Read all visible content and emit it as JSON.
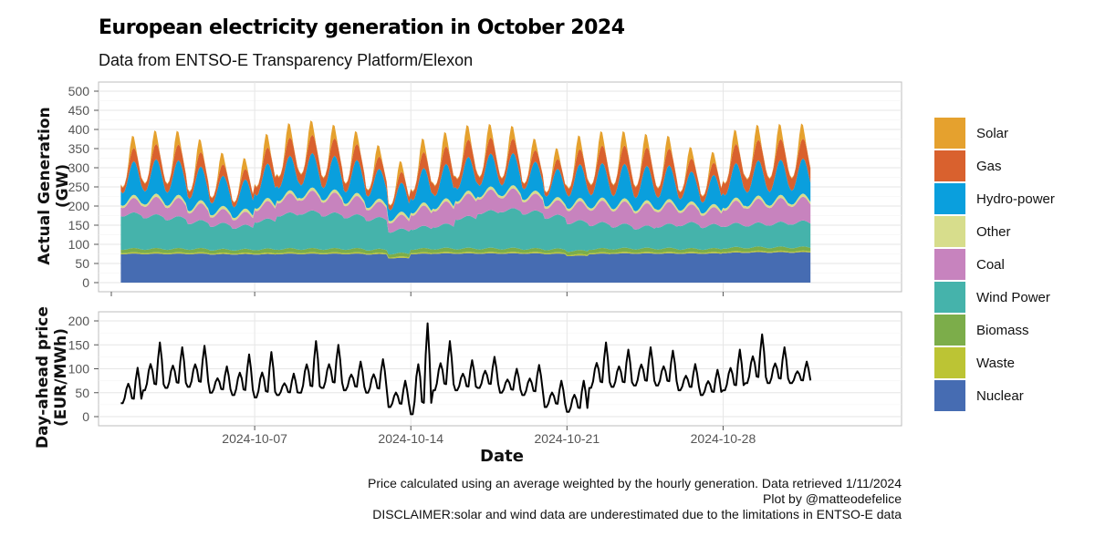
{
  "chart_data": {
    "title": "European electricity generation in October 2024",
    "subtitle": "Data from ENTSO-E Transparency Platform/Elexon",
    "xlabel": "Date",
    "caption": [
      "Price calculated using an average weighted by the hourly generation. Data retrieved 1/11/2024",
      "Plot by @matteodefelice",
      "DISCLAIMER:solar and wind data are underestimated due to the limitations in ENTSO-E data"
    ],
    "x_range": [
      "2024-09-30",
      "2024-11-05"
    ],
    "x_ticks": [
      "2024-10-07",
      "2024-10-14",
      "2024-10-21",
      "2024-10-28"
    ],
    "panels": [
      {
        "type": "area",
        "ylabel_lines": [
          "Actual Generation",
          "(GW)"
        ],
        "ylim": [
          0,
          500
        ],
        "y_ticks": [
          0,
          50,
          100,
          150,
          200,
          250,
          300,
          350,
          400,
          450,
          500
        ],
        "grid": true,
        "legend_position": "right",
        "daily_profile_days": [
          "2024-10-01",
          "2024-10-02",
          "2024-10-03",
          "2024-10-04",
          "2024-10-05",
          "2024-10-06",
          "2024-10-07",
          "2024-10-08",
          "2024-10-09",
          "2024-10-10",
          "2024-10-11",
          "2024-10-12",
          "2024-10-13",
          "2024-10-14",
          "2024-10-15",
          "2024-10-16",
          "2024-10-17",
          "2024-10-18",
          "2024-10-19",
          "2024-10-20",
          "2024-10-21",
          "2024-10-22",
          "2024-10-23",
          "2024-10-24",
          "2024-10-25",
          "2024-10-26",
          "2024-10-27",
          "2024-10-28",
          "2024-10-29",
          "2024-10-30",
          "2024-10-31"
        ],
        "series": [
          {
            "name": "Nuclear",
            "color": "#466CB2",
            "daily_mean": [
              75,
              75,
              75,
              75,
              74,
              74,
              74,
              75,
              75,
              75,
              75,
              74,
              64,
              75,
              76,
              76,
              76,
              76,
              76,
              75,
              70,
              75,
              76,
              76,
              76,
              76,
              76,
              78,
              79,
              79,
              79
            ],
            "daily_swing": [
              1,
              1,
              1,
              1,
              1,
              1,
              1,
              1,
              1,
              1,
              1,
              1,
              1,
              1,
              1,
              1,
              1,
              1,
              1,
              1,
              1,
              1,
              1,
              1,
              1,
              1,
              1,
              1,
              1,
              1,
              1
            ]
          },
          {
            "name": "Waste",
            "color": "#BCC434",
            "daily_mean": [
              3,
              3,
              3,
              3,
              3,
              3,
              3,
              3,
              3,
              3,
              3,
              3,
              3,
              3,
              3,
              3,
              3,
              3,
              3,
              3,
              3,
              3,
              3,
              3,
              3,
              3,
              3,
              3,
              3,
              3,
              3
            ],
            "daily_swing": [
              0.5,
              0.5,
              0.5,
              0.5,
              0.5,
              0.5,
              0.5,
              0.5,
              0.5,
              0.5,
              0.5,
              0.5,
              0.5,
              0.5,
              0.5,
              0.5,
              0.5,
              0.5,
              0.5,
              0.5,
              0.5,
              0.5,
              0.5,
              0.5,
              0.5,
              0.5,
              0.5,
              0.5,
              0.5,
              0.5,
              0.5
            ]
          },
          {
            "name": "Biomass",
            "color": "#7CAD4A",
            "daily_mean": [
              10,
              10,
              10,
              10,
              9,
              9,
              10,
              10,
              10,
              10,
              10,
              9,
              9,
              10,
              10,
              10,
              10,
              10,
              9,
              9,
              10,
              10,
              10,
              10,
              10,
              9,
              9,
              10,
              10,
              10,
              10
            ],
            "daily_swing": [
              1,
              1,
              1,
              1,
              1,
              1,
              1,
              1,
              1,
              1,
              1,
              1,
              1,
              1,
              1,
              1,
              1,
              1,
              1,
              1,
              1,
              1,
              1,
              1,
              1,
              1,
              1,
              1,
              1,
              1,
              1
            ]
          },
          {
            "name": "Wind Power",
            "color": "#45B3AB",
            "daily_mean": [
              90,
              85,
              80,
              70,
              65,
              60,
              75,
              90,
              95,
              90,
              85,
              80,
              60,
              55,
              60,
              80,
              95,
              100,
              95,
              85,
              75,
              65,
              60,
              55,
              60,
              65,
              60,
              60,
              60,
              62,
              65
            ],
            "daily_swing": [
              3,
              3,
              3,
              3,
              3,
              3,
              3,
              3,
              3,
              3,
              3,
              3,
              3,
              3,
              3,
              3,
              3,
              3,
              3,
              3,
              3,
              3,
              3,
              3,
              3,
              3,
              3,
              3,
              3,
              3,
              3
            ]
          },
          {
            "name": "Coal",
            "color": "#C783BE",
            "daily_mean": [
              30,
              38,
              40,
              36,
              30,
              28,
              38,
              42,
              44,
              44,
              40,
              34,
              30,
              45,
              50,
              50,
              46,
              44,
              38,
              32,
              42,
              48,
              50,
              50,
              48,
              40,
              38,
              50,
              54,
              54,
              54
            ],
            "daily_swing": [
              8,
              8,
              8,
              8,
              6,
              6,
              8,
              8,
              8,
              8,
              8,
              6,
              6,
              8,
              8,
              8,
              8,
              8,
              6,
              6,
              8,
              8,
              8,
              8,
              8,
              6,
              6,
              8,
              8,
              8,
              8
            ]
          },
          {
            "name": "Other",
            "color": "#D7DD8C",
            "daily_mean": [
              7,
              7,
              7,
              7,
              7,
              7,
              7,
              7,
              7,
              7,
              7,
              7,
              7,
              7,
              7,
              7,
              7,
              7,
              7,
              7,
              7,
              7,
              7,
              7,
              7,
              7,
              7,
              7,
              7,
              7,
              7
            ],
            "daily_swing": [
              1,
              1,
              1,
              1,
              1,
              1,
              1,
              1,
              1,
              1,
              1,
              1,
              1,
              1,
              1,
              1,
              1,
              1,
              1,
              1,
              1,
              1,
              1,
              1,
              1,
              1,
              1,
              1,
              1,
              1,
              1
            ]
          },
          {
            "name": "Hydro-power",
            "color": "#0A9FDD",
            "daily_mean": [
              60,
              62,
              62,
              60,
              55,
              52,
              62,
              62,
              62,
              60,
              58,
              54,
              52,
              62,
              62,
              60,
              58,
              56,
              52,
              50,
              60,
              62,
              62,
              62,
              60,
              54,
              52,
              62,
              64,
              64,
              64
            ],
            "daily_swing": [
              28,
              28,
              28,
              28,
              24,
              24,
              28,
              28,
              28,
              28,
              28,
              24,
              24,
              28,
              28,
              28,
              28,
              28,
              24,
              24,
              28,
              28,
              28,
              28,
              28,
              24,
              24,
              28,
              28,
              28,
              28
            ]
          },
          {
            "name": "Gas",
            "color": "#D9612E",
            "daily_mean": [
              25,
              30,
              32,
              28,
              22,
              20,
              32,
              38,
              38,
              36,
              32,
              24,
              20,
              32,
              36,
              36,
              32,
              28,
              22,
              18,
              30,
              36,
              38,
              38,
              34,
              26,
              24,
              40,
              44,
              44,
              42
            ],
            "daily_swing": [
              10,
              10,
              10,
              10,
              8,
              8,
              10,
              10,
              10,
              10,
              10,
              8,
              8,
              10,
              10,
              10,
              10,
              10,
              8,
              8,
              10,
              10,
              10,
              10,
              10,
              8,
              8,
              10,
              10,
              10,
              10
            ]
          },
          {
            "name": "Solar",
            "color": "#E5A12E",
            "daily_mean": [
              18,
              20,
              20,
              19,
              17,
              16,
              20,
              21,
              21,
              20,
              19,
              17,
              16,
              20,
              21,
              21,
              20,
              19,
              17,
              16,
              20,
              21,
              21,
              20,
              19,
              17,
              16,
              21,
              22,
              22,
              22
            ],
            "daily_swing": [
              18,
              20,
              20,
              19,
              17,
              16,
              20,
              21,
              21,
              20,
              19,
              17,
              16,
              20,
              21,
              21,
              20,
              19,
              17,
              16,
              20,
              21,
              21,
              20,
              19,
              17,
              16,
              21,
              22,
              22,
              22
            ]
          }
        ]
      },
      {
        "type": "line",
        "ylabel_lines": [
          "Day-ahead price",
          "(EUR/MWh)"
        ],
        "ylim": [
          0,
          200
        ],
        "y_ticks": [
          0,
          50,
          100,
          150,
          200
        ],
        "grid": true,
        "line_color": "#000000",
        "series_name": "",
        "daily_peak_days": [
          "2024-10-01",
          "2024-10-02",
          "2024-10-03",
          "2024-10-04",
          "2024-10-05",
          "2024-10-06",
          "2024-10-07",
          "2024-10-08",
          "2024-10-09",
          "2024-10-10",
          "2024-10-11",
          "2024-10-12",
          "2024-10-13",
          "2024-10-14",
          "2024-10-15",
          "2024-10-16",
          "2024-10-17",
          "2024-10-18",
          "2024-10-19",
          "2024-10-20",
          "2024-10-21",
          "2024-10-22",
          "2024-10-23",
          "2024-10-24",
          "2024-10-25",
          "2024-10-26",
          "2024-10-27",
          "2024-10-28",
          "2024-10-29",
          "2024-10-30",
          "2024-10-31"
        ],
        "daily_peak": [
          102,
          155,
          145,
          148,
          105,
          130,
          135,
          90,
          158,
          150,
          115,
          120,
          75,
          195,
          158,
          118,
          125,
          100,
          108,
          75,
          75,
          155,
          140,
          145,
          138,
          110,
          98,
          140,
          172,
          145,
          115
        ],
        "daily_low": [
          28,
          55,
          60,
          62,
          50,
          45,
          40,
          45,
          50,
          60,
          55,
          50,
          20,
          5,
          55,
          55,
          60,
          50,
          45,
          20,
          10,
          60,
          62,
          65,
          65,
          55,
          45,
          55,
          70,
          70,
          70
        ]
      }
    ]
  }
}
